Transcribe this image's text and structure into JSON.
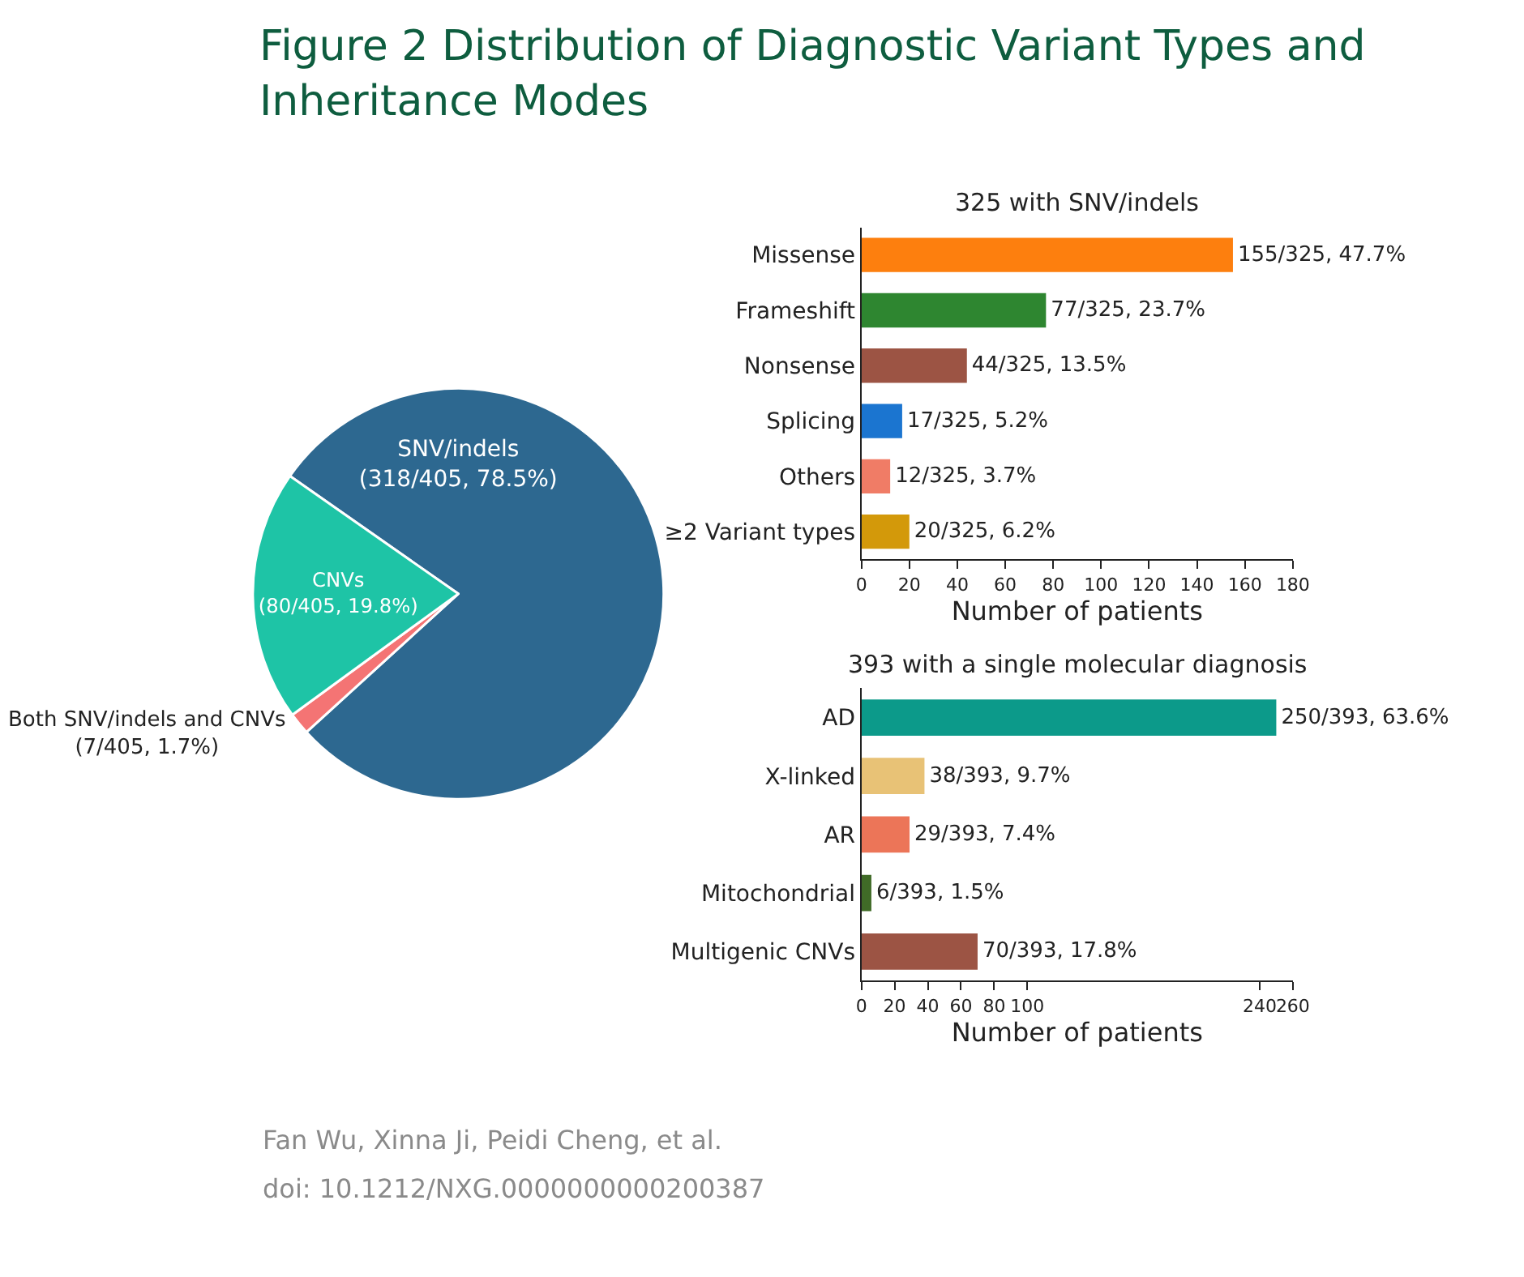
{
  "chart_data": [
    {
      "type": "pie",
      "title": "Figure 2 Distribution of Diagnostic Variant Types and Inheritance Modes",
      "categories": [
        "SNV/indels",
        "Both SNV/indels and CNVs",
        "CNVs"
      ],
      "values": [
        318,
        7,
        80
      ],
      "value_labels": [
        "(318/405, 78.5%)",
        "(7/405, 1.7%)",
        "(80/405, 19.8%)"
      ],
      "colors": [
        "#2d6890",
        "#f47474",
        "#1ec4a6"
      ],
      "annotations": [
        "Fan Wu, Xinna Ji, Peidi Cheng, et al.",
        "doi: 10.1212/NXG.0000000000200387"
      ]
    },
    {
      "type": "bar",
      "orientation": "horizontal",
      "title": "325 with SNV/indels",
      "categories": [
        "Missense",
        "Frameshift",
        "Nonsense",
        "Splicing",
        "Others",
        "≥2 Variant types"
      ],
      "values": [
        155,
        77,
        44,
        17,
        12,
        20
      ],
      "colors": [
        "#fd7f0e",
        "#2e8630",
        "#9c5444",
        "#1b75d0",
        "#f07c66",
        "#d3990a"
      ],
      "value_labels": [
        "155/325, 47.7%",
        "77/325, 23.7%",
        "44/325, 13.5%",
        "17/325, 5.2%",
        "12/325, 3.7%",
        "20/325, 6.2%"
      ],
      "xlabel": "Number of patients",
      "xlim": [
        0,
        180
      ],
      "xticks": [
        0,
        20,
        40,
        60,
        80,
        100,
        120,
        140,
        160,
        180
      ]
    },
    {
      "type": "bar",
      "orientation": "horizontal",
      "title": "393 with a single molecular diagnosis",
      "categories": [
        "AD",
        "X-linked",
        "AR",
        "Mitochondrial",
        "Multigenic CNVs"
      ],
      "values": [
        250,
        38,
        29,
        6,
        70
      ],
      "colors": [
        "#0c9a8a",
        "#e8c276",
        "#ec7558",
        "#406b27",
        "#9c5444"
      ],
      "value_labels": [
        "250/393, 63.6%",
        "38/393, 9.7%",
        "29/393, 7.4%",
        "6/393, 1.5%",
        "70/393, 17.8%"
      ],
      "xlabel": "Number of patients",
      "xlim": [
        0,
        260
      ],
      "xticks": [
        0,
        20,
        40,
        60,
        80,
        100,
        240,
        260
      ]
    }
  ]
}
